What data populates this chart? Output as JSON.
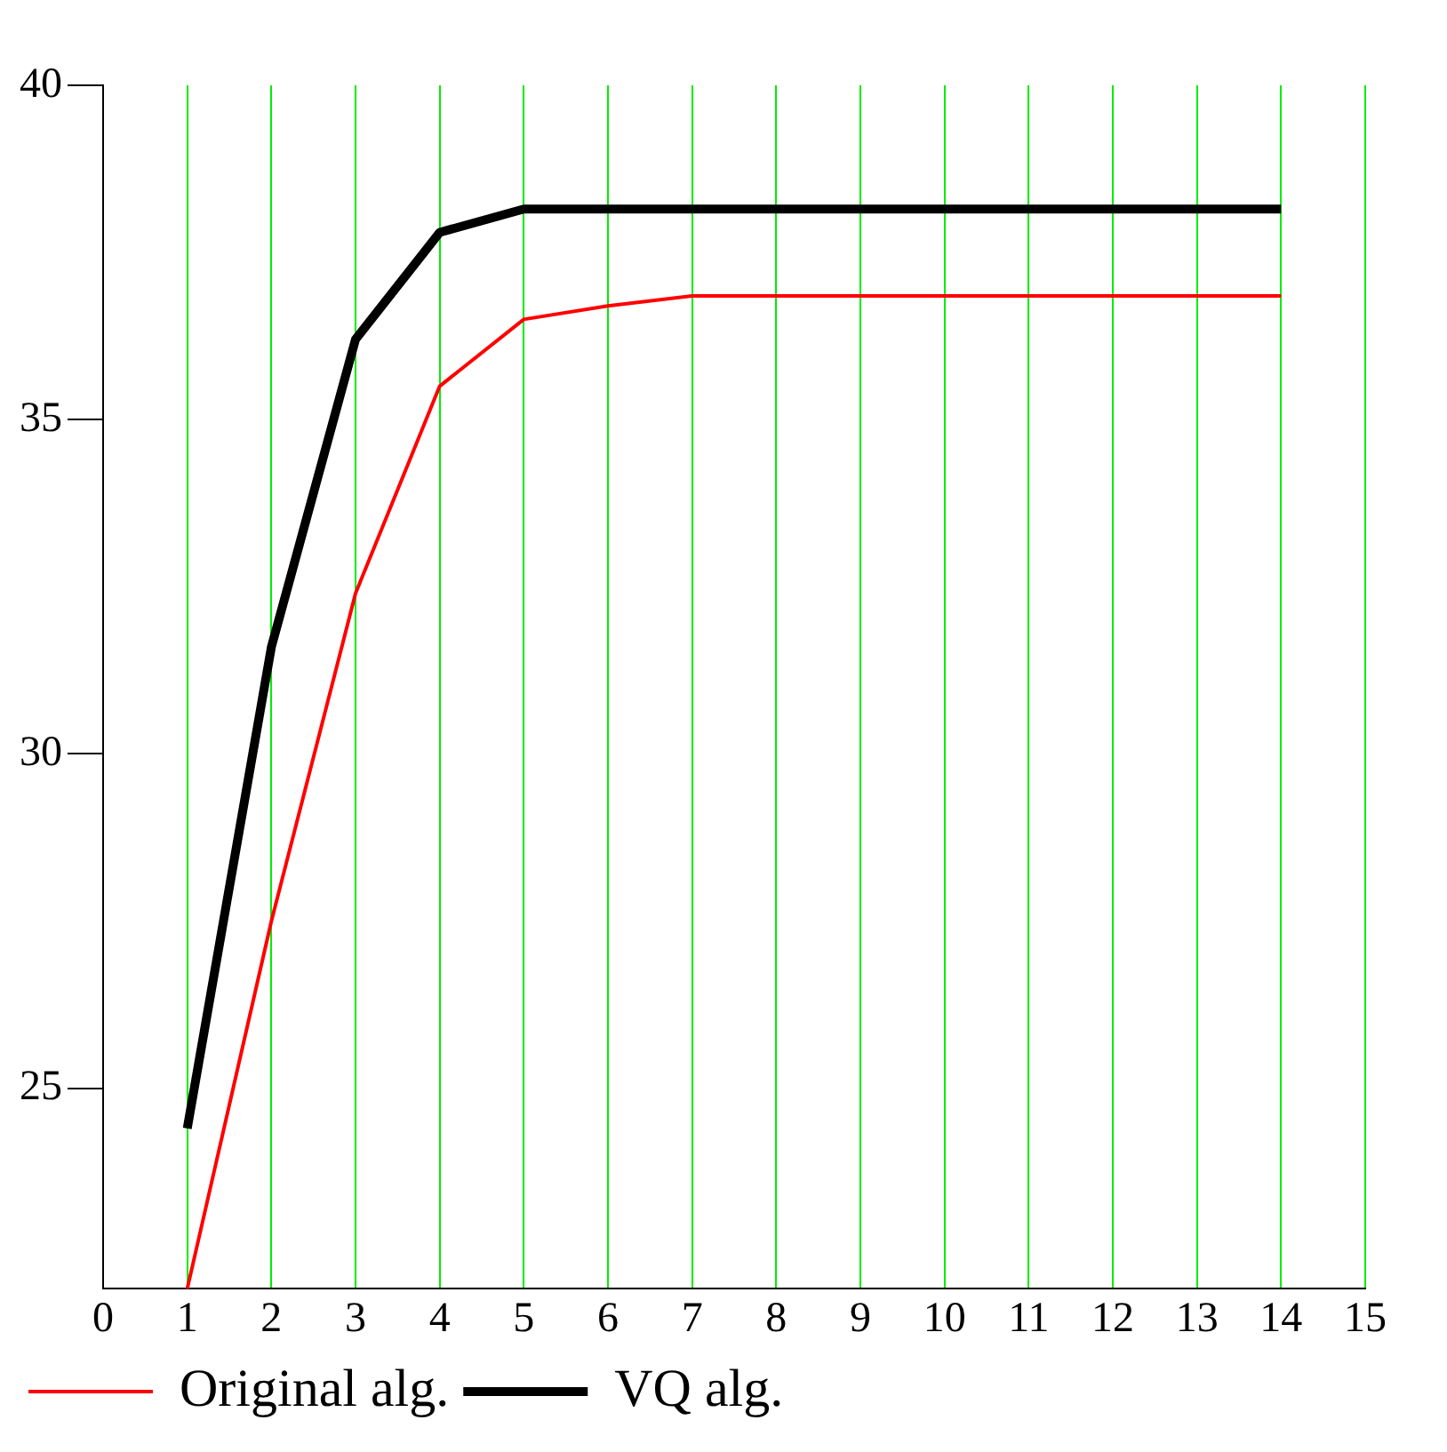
{
  "chart_data": {
    "type": "line",
    "x": [
      1,
      2,
      3,
      4,
      5,
      6,
      7,
      8,
      9,
      10,
      11,
      12,
      13,
      14
    ],
    "series": [
      {
        "name": "Original alg.",
        "color": "#ff0000",
        "values": [
          22.0,
          27.5,
          32.4,
          35.5,
          36.5,
          36.7,
          36.85,
          36.85,
          36.85,
          36.85,
          36.85,
          36.85,
          36.85,
          36.85
        ]
      },
      {
        "name": "VQ alg.",
        "color": "#000000",
        "values": [
          24.4,
          31.6,
          36.2,
          37.8,
          38.15,
          38.15,
          38.15,
          38.15,
          38.15,
          38.15,
          38.15,
          38.15,
          38.15,
          38.15
        ]
      }
    ],
    "xlim": [
      0,
      15
    ],
    "xticks": [
      0,
      1,
      2,
      3,
      4,
      5,
      6,
      7,
      8,
      9,
      10,
      11,
      12,
      13,
      14,
      15
    ],
    "ylim": [
      22,
      40
    ],
    "yticks": [
      25,
      30,
      35,
      40
    ],
    "grid": "x",
    "legend": "bottom left",
    "marker": "none",
    "line_style": "solid"
  }
}
